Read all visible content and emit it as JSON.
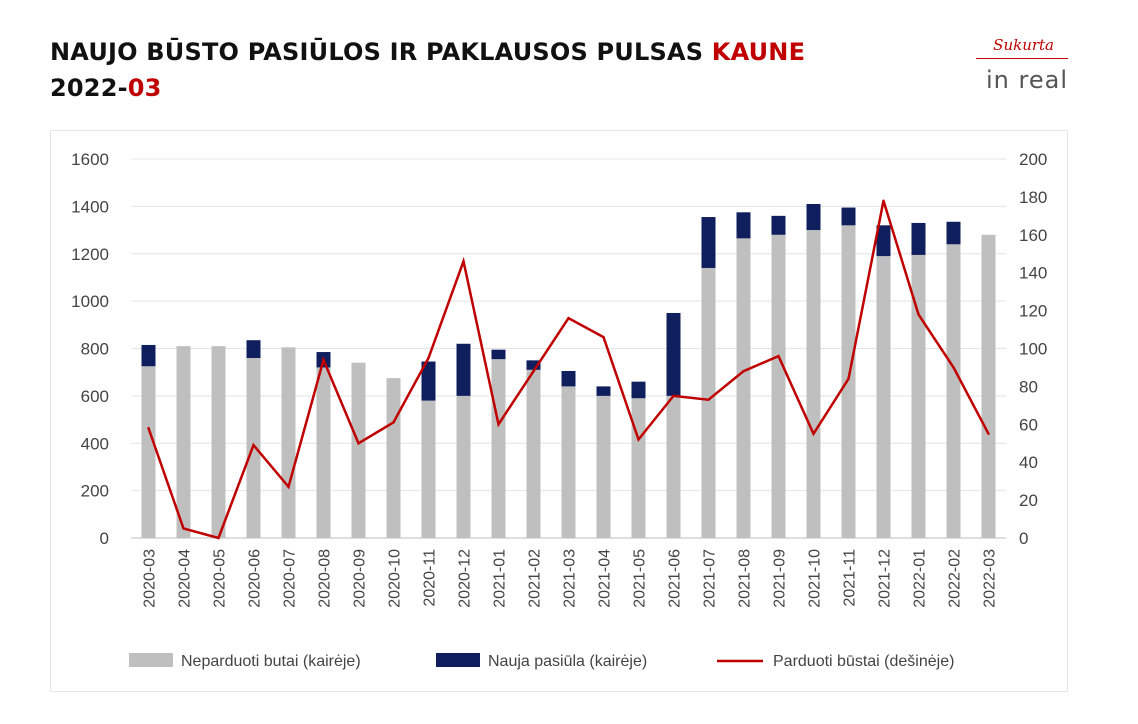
{
  "header": {
    "title_main": "NAUJO BŪSTO PASIŪLOS IR PAKLAUSOS PULSAS ",
    "title_city": "KAUNE",
    "date_prefix": "2022-",
    "date_month": "03"
  },
  "logo": {
    "sukurta": "Sukurta",
    "brand": "in real"
  },
  "colors": {
    "unsold": "#bfbfbf",
    "new_supply": "#0f1e5c",
    "sold": "#c00000",
    "accent": "#c00000"
  },
  "chart_data": {
    "type": "bar",
    "stacked": true,
    "categories": [
      "2020-03",
      "2020-04",
      "2020-05",
      "2020-06",
      "2020-07",
      "2020-08",
      "2020-09",
      "2020-10",
      "2020-11",
      "2020-12",
      "2021-01",
      "2021-02",
      "2021-03",
      "2021-04",
      "2021-05",
      "2021-06",
      "2021-07",
      "2021-08",
      "2021-09",
      "2021-10",
      "2021-11",
      "2021-12",
      "2022-01",
      "2022-02",
      "2022-03"
    ],
    "series": [
      {
        "name": "Neparduoti butai (kairėje)",
        "type": "bar",
        "axis": "left",
        "values": [
          725,
          810,
          810,
          760,
          805,
          720,
          740,
          675,
          580,
          600,
          755,
          710,
          640,
          600,
          590,
          600,
          1140,
          1265,
          1280,
          1300,
          1320,
          1190,
          1195,
          1240,
          1280
        ]
      },
      {
        "name": "Nauja pasiūla (kairėje)",
        "type": "bar",
        "axis": "left",
        "values": [
          90,
          0,
          0,
          75,
          0,
          65,
          0,
          0,
          165,
          220,
          40,
          40,
          65,
          40,
          70,
          350,
          215,
          110,
          80,
          110,
          75,
          130,
          135,
          95,
          0
        ]
      },
      {
        "name": "Parduoti būstai (dešinėje)",
        "type": "line",
        "axis": "right",
        "values": [
          58,
          5,
          0,
          49,
          27,
          94,
          50,
          61,
          95,
          146,
          60,
          88,
          116,
          106,
          52,
          75,
          73,
          88,
          96,
          55,
          84,
          178,
          118,
          90,
          55
        ]
      }
    ],
    "y_left": {
      "min": 0,
      "max": 1600,
      "ticks": [
        0,
        200,
        400,
        600,
        800,
        1000,
        1200,
        1400,
        1600
      ]
    },
    "y_right": {
      "min": 0,
      "max": 200,
      "ticks": [
        0,
        20,
        40,
        60,
        80,
        100,
        120,
        140,
        160,
        180,
        200
      ]
    },
    "grid": true,
    "legend_position": "bottom"
  }
}
